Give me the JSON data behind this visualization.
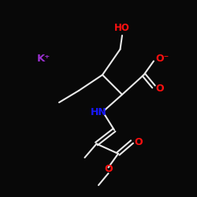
{
  "bg_color": "#080808",
  "bond_color": "#e8e8e8",
  "o_color": "#ff1010",
  "n_color": "#1818ff",
  "k_color": "#9b30d0",
  "ho_color": "#ff1010",
  "ho_text": "HO",
  "k_text": "K⁺",
  "nh_text": "HN",
  "o_minus_text": "O⁻",
  "o_text": "O",
  "figsize": [
    2.5,
    2.5
  ],
  "dpi": 100,
  "lw": 1.5
}
